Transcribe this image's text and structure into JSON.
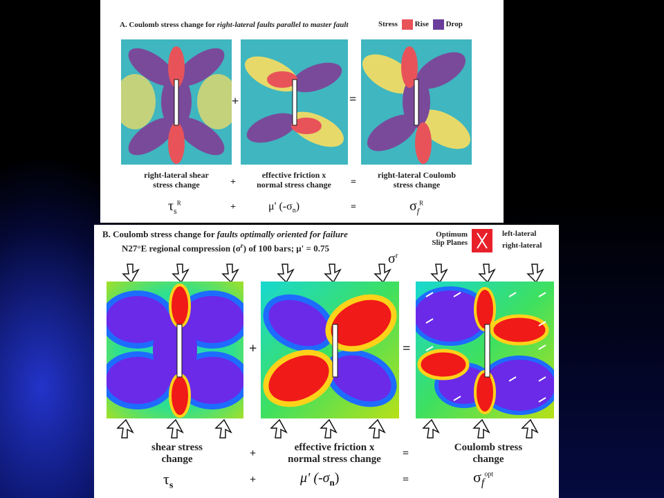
{
  "panel_a": {
    "title_prefix": "A.  Coulomb stress change for ",
    "title_italic": "right-lateral faults parallel to master fault",
    "legend": {
      "label": "Stress",
      "rise": "Rise",
      "drop": "Drop",
      "rise_color": "#e8535a",
      "drop_color": "#6a3d9a"
    },
    "captions": [
      {
        "line1": "right-lateral shear",
        "line2": "stress change"
      },
      {
        "line1": "effective friction  x",
        "line2": "normal stress change"
      },
      {
        "line1": "right-lateral Coulomb",
        "line2": "stress change"
      }
    ],
    "plus": "+",
    "equals": "=",
    "symbols": [
      "τ",
      "s",
      "R",
      "μ' (-σ",
      "n",
      ")",
      "σ",
      "f",
      "R"
    ]
  },
  "panel_b": {
    "title_prefix": "B.  Coulomb stress change for ",
    "title_italic": "faults optimally oriented for failure",
    "subtitle": "N27°E regional compression (σ",
    "subtitle_sup": "r",
    "subtitle_rest": ") of 100 bars; μ' = 0.75",
    "legend": {
      "line1": "Optimum",
      "line2": "Slip Planes",
      "left_lateral": "left-lateral",
      "right_lateral": "right-lateral",
      "box_color": "#e8202a"
    },
    "sigma_r": "σ",
    "sigma_r_sup": "r",
    "captions": [
      {
        "line1": "shear stress",
        "line2": "change"
      },
      {
        "line1": "effective friction  x",
        "line2": "normal stress change"
      },
      {
        "line1": "Coulomb stress",
        "line2": "change"
      }
    ],
    "plus": "+",
    "equals": "=",
    "symbols": [
      "τ",
      "s",
      "μ' (-σ",
      "n",
      ")",
      "σ",
      "f",
      "opt"
    ]
  }
}
